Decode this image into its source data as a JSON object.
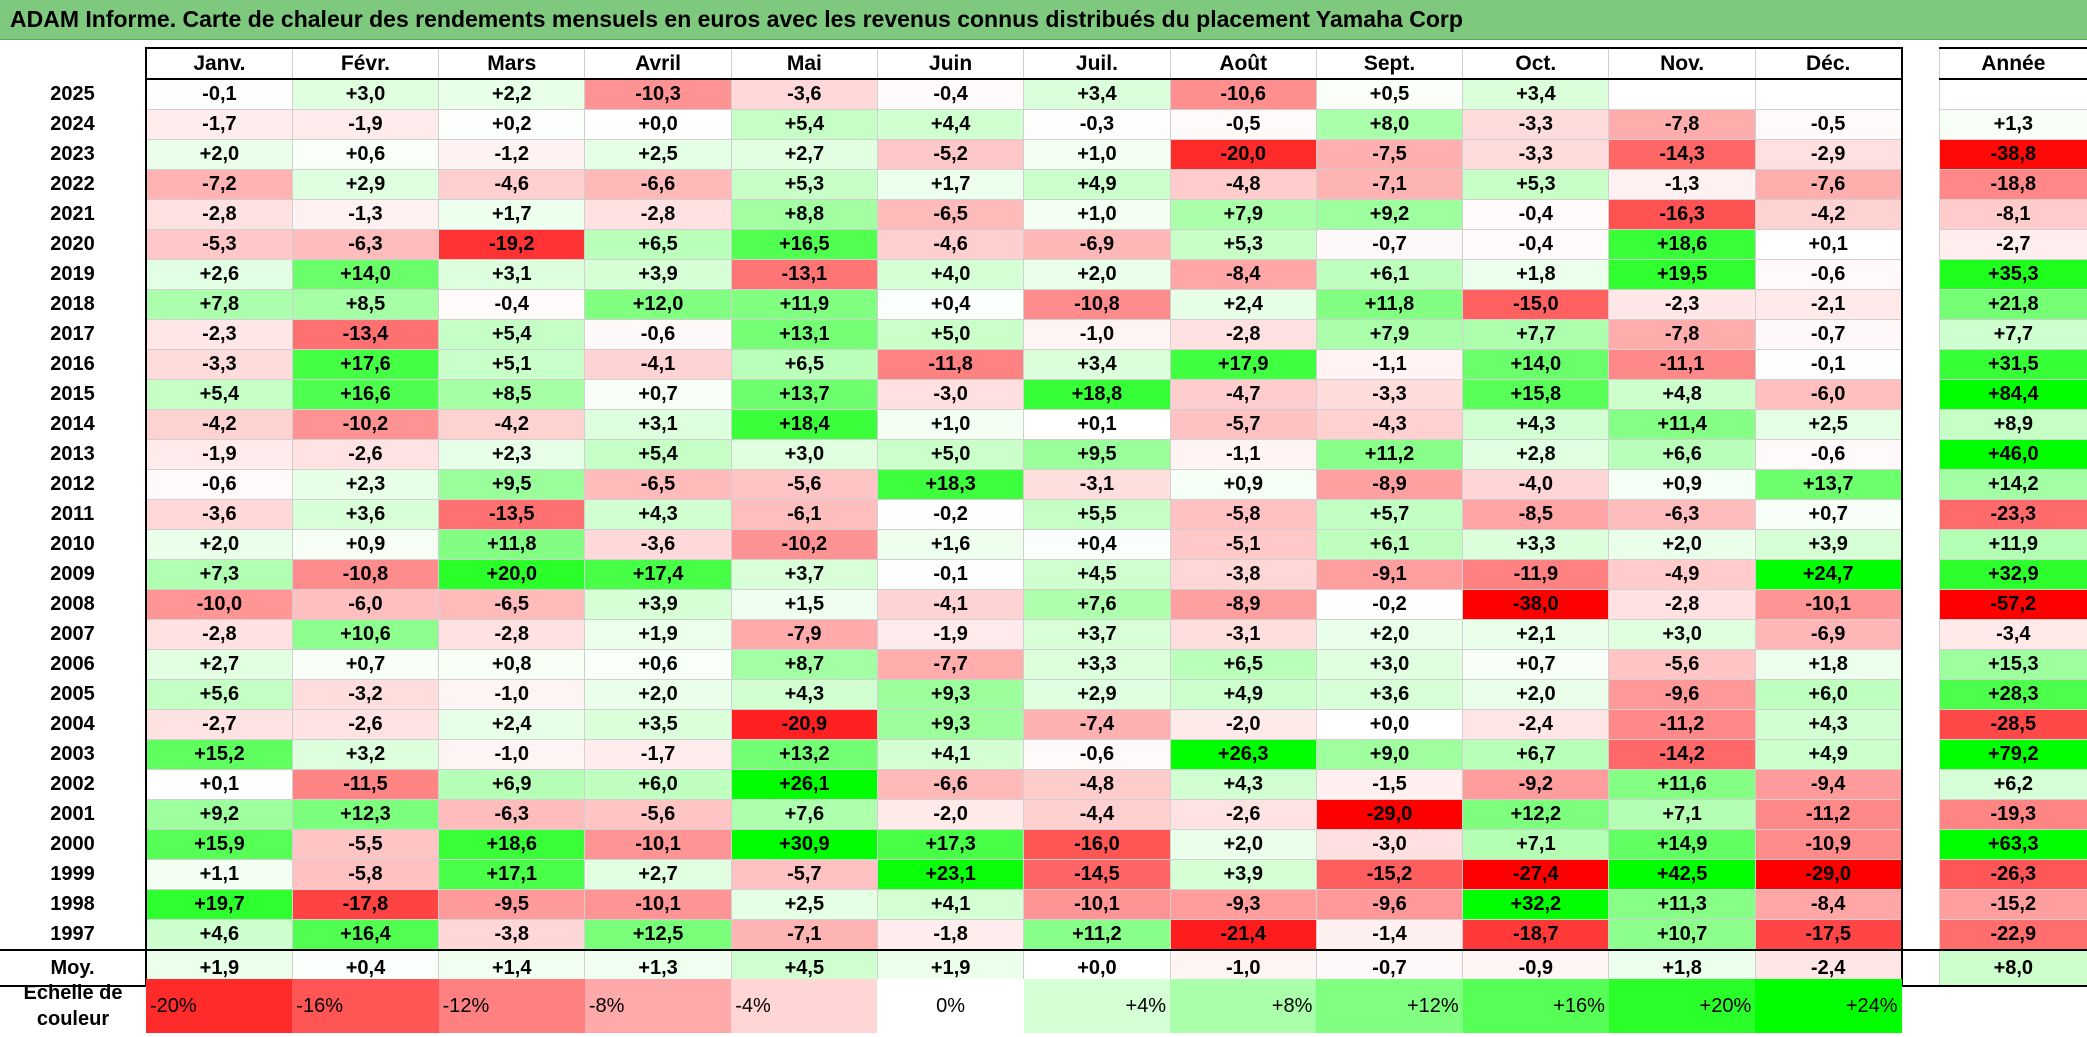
{
  "title": "ADAM Informe. Carte de chaleur des rendements mensuels en euros avec les revenus connus distribués du placement Yamaha Corp",
  "colors": {
    "negative_max": "#ff0000",
    "neutral": "#ffffff",
    "positive_max": "#00ff00",
    "title_background": "#7fc97f"
  },
  "chart_data": {
    "type": "heatmap",
    "title": "ADAM Informe. Carte de chaleur des rendements mensuels en euros avec les revenus connus distribués du placement Yamaha Corp",
    "months": [
      "Janv.",
      "Févr.",
      "Mars",
      "Avril",
      "Mai",
      "Juin",
      "Juil.",
      "Août",
      "Sept.",
      "Oct.",
      "Nov.",
      "Déc."
    ],
    "annual_header": "Année",
    "rows": [
      {
        "year": "2025",
        "values": [
          "-0,1",
          "+3,0",
          "+2,2",
          "-10,3",
          "-3,6",
          "-0,4",
          "+3,4",
          "-10,6",
          "+0,5",
          "+3,4",
          "",
          ""
        ],
        "annual": ""
      },
      {
        "year": "2024",
        "values": [
          "-1,7",
          "-1,9",
          "+0,2",
          "+0,0",
          "+5,4",
          "+4,4",
          "-0,3",
          "-0,5",
          "+8,0",
          "-3,3",
          "-7,8",
          "-0,5"
        ],
        "annual": "+1,3"
      },
      {
        "year": "2023",
        "values": [
          "+2,0",
          "+0,6",
          "-1,2",
          "+2,5",
          "+2,7",
          "-5,2",
          "+1,0",
          "-20,0",
          "-7,5",
          "-3,3",
          "-14,3",
          "-2,9"
        ],
        "annual": "-38,8"
      },
      {
        "year": "2022",
        "values": [
          "-7,2",
          "+2,9",
          "-4,6",
          "-6,6",
          "+5,3",
          "+1,7",
          "+4,9",
          "-4,8",
          "-7,1",
          "+5,3",
          "-1,3",
          "-7,6"
        ],
        "annual": "-18,8"
      },
      {
        "year": "2021",
        "values": [
          "-2,8",
          "-1,3",
          "+1,7",
          "-2,8",
          "+8,8",
          "-6,5",
          "+1,0",
          "+7,9",
          "+9,2",
          "-0,4",
          "-16,3",
          "-4,2"
        ],
        "annual": "-8,1"
      },
      {
        "year": "2020",
        "values": [
          "-5,3",
          "-6,3",
          "-19,2",
          "+6,5",
          "+16,5",
          "-4,6",
          "-6,9",
          "+5,3",
          "-0,7",
          "-0,4",
          "+18,6",
          "+0,1"
        ],
        "annual": "-2,7"
      },
      {
        "year": "2019",
        "values": [
          "+2,6",
          "+14,0",
          "+3,1",
          "+3,9",
          "-13,1",
          "+4,0",
          "+2,0",
          "-8,4",
          "+6,1",
          "+1,8",
          "+19,5",
          "-0,6"
        ],
        "annual": "+35,3"
      },
      {
        "year": "2018",
        "values": [
          "+7,8",
          "+8,5",
          "-0,4",
          "+12,0",
          "+11,9",
          "+0,4",
          "-10,8",
          "+2,4",
          "+11,8",
          "-15,0",
          "-2,3",
          "-2,1"
        ],
        "annual": "+21,8"
      },
      {
        "year": "2017",
        "values": [
          "-2,3",
          "-13,4",
          "+5,4",
          "-0,6",
          "+13,1",
          "+5,0",
          "-1,0",
          "-2,8",
          "+7,9",
          "+7,7",
          "-7,8",
          "-0,7"
        ],
        "annual": "+7,7"
      },
      {
        "year": "2016",
        "values": [
          "-3,3",
          "+17,6",
          "+5,1",
          "-4,1",
          "+6,5",
          "-11,8",
          "+3,4",
          "+17,9",
          "-1,1",
          "+14,0",
          "-11,1",
          "-0,1"
        ],
        "annual": "+31,5"
      },
      {
        "year": "2015",
        "values": [
          "+5,4",
          "+16,6",
          "+8,5",
          "+0,7",
          "+13,7",
          "-3,0",
          "+18,8",
          "-4,7",
          "-3,3",
          "+15,8",
          "+4,8",
          "-6,0"
        ],
        "annual": "+84,4"
      },
      {
        "year": "2014",
        "values": [
          "-4,2",
          "-10,2",
          "-4,2",
          "+3,1",
          "+18,4",
          "+1,0",
          "+0,1",
          "-5,7",
          "-4,3",
          "+4,3",
          "+11,4",
          "+2,5"
        ],
        "annual": "+8,9"
      },
      {
        "year": "2013",
        "values": [
          "-1,9",
          "-2,6",
          "+2,3",
          "+5,4",
          "+3,0",
          "+5,0",
          "+9,5",
          "-1,1",
          "+11,2",
          "+2,8",
          "+6,6",
          "-0,6"
        ],
        "annual": "+46,0"
      },
      {
        "year": "2012",
        "values": [
          "-0,6",
          "+2,3",
          "+9,5",
          "-6,5",
          "-5,6",
          "+18,3",
          "-3,1",
          "+0,9",
          "-8,9",
          "-4,0",
          "+0,9",
          "+13,7"
        ],
        "annual": "+14,2"
      },
      {
        "year": "2011",
        "values": [
          "-3,6",
          "+3,6",
          "-13,5",
          "+4,3",
          "-6,1",
          "-0,2",
          "+5,5",
          "-5,8",
          "+5,7",
          "-8,5",
          "-6,3",
          "+0,7"
        ],
        "annual": "-23,3"
      },
      {
        "year": "2010",
        "values": [
          "+2,0",
          "+0,9",
          "+11,8",
          "-3,6",
          "-10,2",
          "+1,6",
          "+0,4",
          "-5,1",
          "+6,1",
          "+3,3",
          "+2,0",
          "+3,9"
        ],
        "annual": "+11,9"
      },
      {
        "year": "2009",
        "values": [
          "+7,3",
          "-10,8",
          "+20,0",
          "+17,4",
          "+3,7",
          "-0,1",
          "+4,5",
          "-3,8",
          "-9,1",
          "-11,9",
          "-4,9",
          "+24,7"
        ],
        "annual": "+32,9"
      },
      {
        "year": "2008",
        "values": [
          "-10,0",
          "-6,0",
          "-6,5",
          "+3,9",
          "+1,5",
          "-4,1",
          "+7,6",
          "-8,9",
          "-0,2",
          "-38,0",
          "-2,8",
          "-10,1"
        ],
        "annual": "-57,2"
      },
      {
        "year": "2007",
        "values": [
          "-2,8",
          "+10,6",
          "-2,8",
          "+1,9",
          "-7,9",
          "-1,9",
          "+3,7",
          "-3,1",
          "+2,0",
          "+2,1",
          "+3,0",
          "-6,9"
        ],
        "annual": "-3,4"
      },
      {
        "year": "2006",
        "values": [
          "+2,7",
          "+0,7",
          "+0,8",
          "+0,6",
          "+8,7",
          "-7,7",
          "+3,3",
          "+6,5",
          "+3,0",
          "+0,7",
          "-5,6",
          "+1,8"
        ],
        "annual": "+15,3"
      },
      {
        "year": "2005",
        "values": [
          "+5,6",
          "-3,2",
          "-1,0",
          "+2,0",
          "+4,3",
          "+9,3",
          "+2,9",
          "+4,9",
          "+3,6",
          "+2,0",
          "-9,6",
          "+6,0"
        ],
        "annual": "+28,3"
      },
      {
        "year": "2004",
        "values": [
          "-2,7",
          "-2,6",
          "+2,4",
          "+3,5",
          "-20,9",
          "+9,3",
          "-7,4",
          "-2,0",
          "+0,0",
          "-2,4",
          "-11,2",
          "+4,3"
        ],
        "annual": "-28,5"
      },
      {
        "year": "2003",
        "values": [
          "+15,2",
          "+3,2",
          "-1,0",
          "-1,7",
          "+13,2",
          "+4,1",
          "-0,6",
          "+26,3",
          "+9,0",
          "+6,7",
          "-14,2",
          "+4,9"
        ],
        "annual": "+79,2"
      },
      {
        "year": "2002",
        "values": [
          "+0,1",
          "-11,5",
          "+6,9",
          "+6,0",
          "+26,1",
          "-6,6",
          "-4,8",
          "+4,3",
          "-1,5",
          "-9,2",
          "+11,6",
          "-9,4"
        ],
        "annual": "+6,2"
      },
      {
        "year": "2001",
        "values": [
          "+9,2",
          "+12,3",
          "-6,3",
          "-5,6",
          "+7,6",
          "-2,0",
          "-4,4",
          "-2,6",
          "-29,0",
          "+12,2",
          "+7,1",
          "-11,2"
        ],
        "annual": "-19,3"
      },
      {
        "year": "2000",
        "values": [
          "+15,9",
          "-5,5",
          "+18,6",
          "-10,1",
          "+30,9",
          "+17,3",
          "-16,0",
          "+2,0",
          "-3,0",
          "+7,1",
          "+14,9",
          "-10,9"
        ],
        "annual": "+63,3"
      },
      {
        "year": "1999",
        "values": [
          "+1,1",
          "-5,8",
          "+17,1",
          "+2,7",
          "-5,7",
          "+23,1",
          "-14,5",
          "+3,9",
          "-15,2",
          "-27,4",
          "+42,5",
          "-29,0"
        ],
        "annual": "-26,3"
      },
      {
        "year": "1998",
        "values": [
          "+19,7",
          "-17,8",
          "-9,5",
          "-10,1",
          "+2,5",
          "+4,1",
          "-10,1",
          "-9,3",
          "-9,6",
          "+32,2",
          "+11,3",
          "-8,4"
        ],
        "annual": "-15,2"
      },
      {
        "year": "1997",
        "values": [
          "+4,6",
          "+16,4",
          "-3,8",
          "+12,5",
          "-7,1",
          "-1,8",
          "+11,2",
          "-21,4",
          "-1,4",
          "-18,7",
          "+10,7",
          "-17,5"
        ],
        "annual": "-22,9"
      }
    ],
    "average": {
      "label": "Moy.",
      "values": [
        "+1,9",
        "+0,4",
        "+1,4",
        "+1,3",
        "+4,5",
        "+1,9",
        "+0,0",
        "-1,0",
        "-0,7",
        "-0,9",
        "+1,8",
        "-2,4"
      ],
      "annual": "+8,0"
    },
    "color_scale": {
      "label": "Echelle de couleur",
      "stops": [
        "-20%",
        "-16%",
        "-12%",
        "-8%",
        "-4%",
        "0%",
        "+4%",
        "+8%",
        "+12%",
        "+16%",
        "+20%",
        "+24%"
      ],
      "stop_values": [
        -20,
        -16,
        -12,
        -8,
        -4,
        0,
        4,
        8,
        12,
        16,
        20,
        24
      ]
    }
  }
}
